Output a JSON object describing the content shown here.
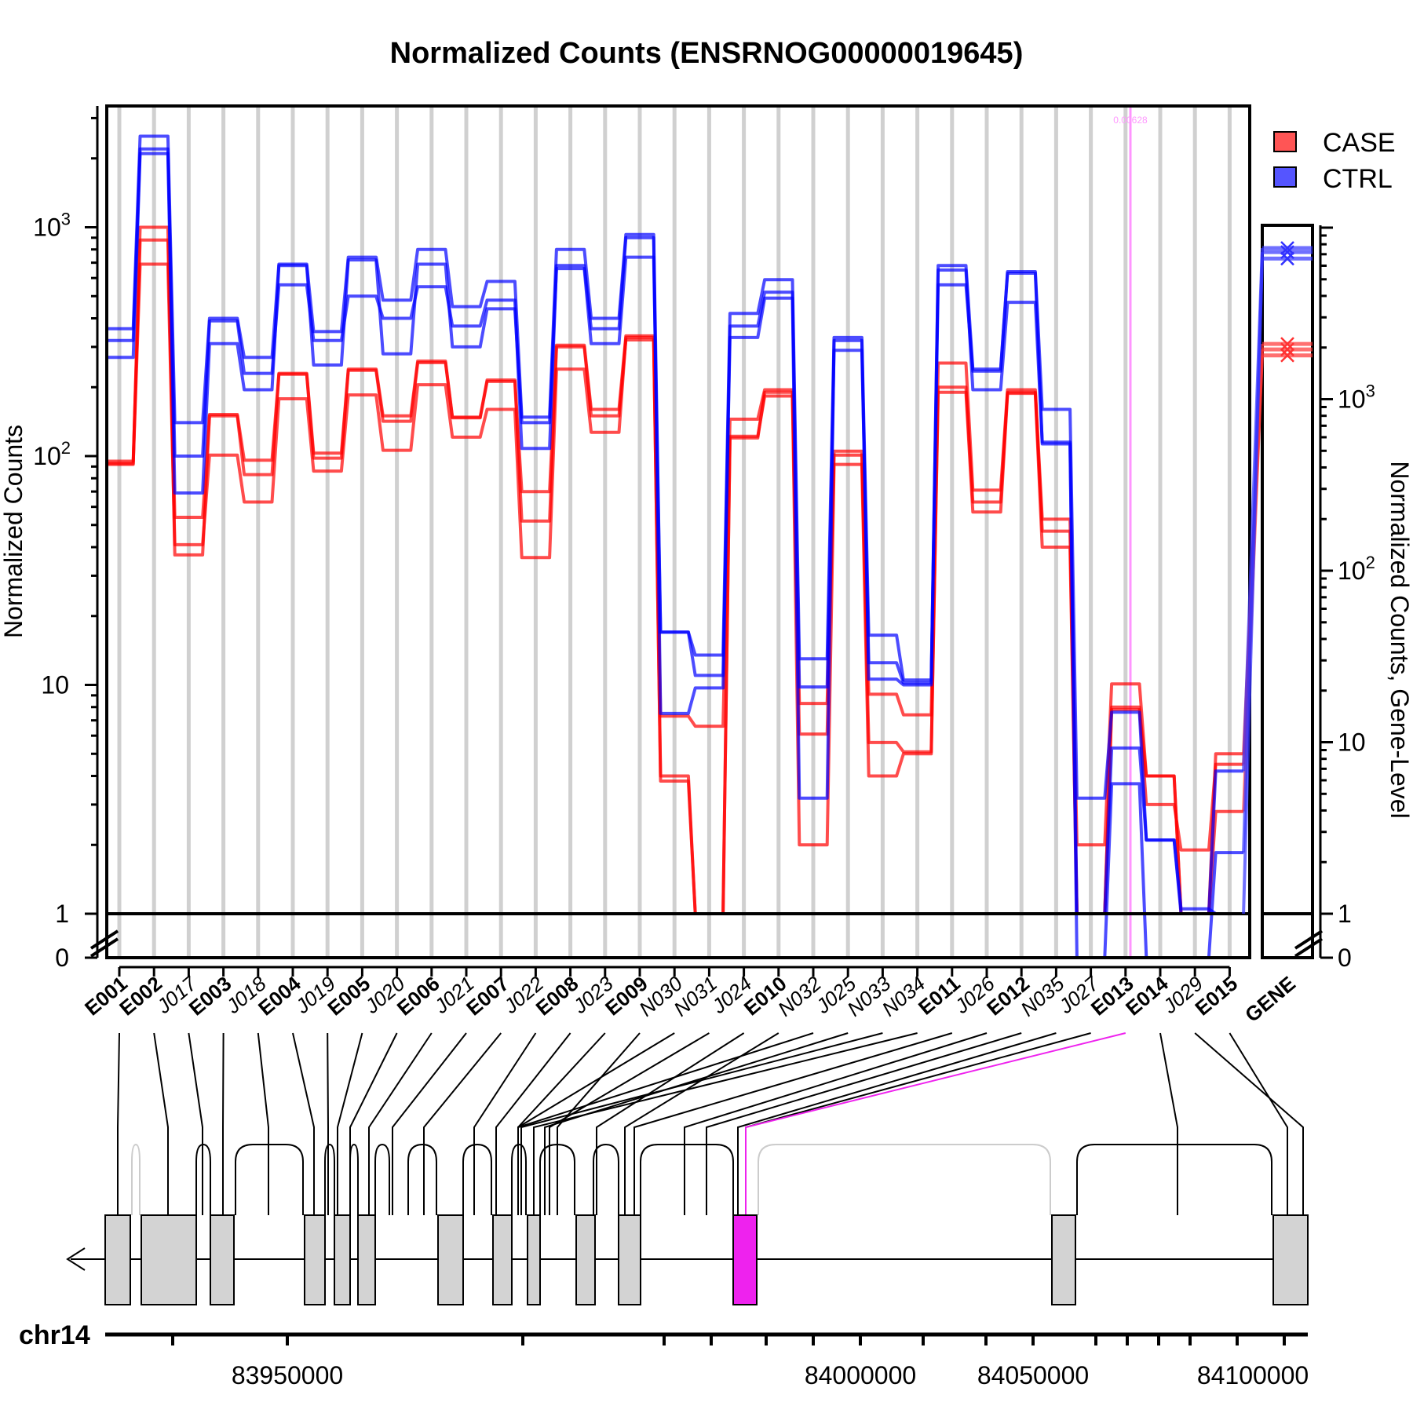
{
  "chart_data": {
    "type": "line",
    "title": "Normalized Counts (ENSRNOG00000019645)",
    "ylabel": "Normalized Counts",
    "ylabel_right": "Normalized Counts, Gene-Level",
    "y_scale": "log",
    "y_tick_labels": {
      "t0": "0",
      "t1": "1",
      "t10": "10",
      "t100_base": "10",
      "t100_exp": "2",
      "t1000_base": "10",
      "t1000_exp": "3"
    },
    "right_tick_labels": {
      "t0": "0",
      "t1": "1",
      "t10": "10",
      "t100_base": "10",
      "t100_exp": "2",
      "t1000_base": "10",
      "t1000_exp": "3"
    },
    "legend": {
      "position": "top-right",
      "entries": [
        {
          "name": "CASE",
          "color": "#ff3333"
        },
        {
          "name": "CTRL",
          "color": "#3333ff"
        }
      ]
    },
    "highlight": {
      "feature": "E013",
      "label": "0.00628",
      "color": "#ff66ff"
    },
    "categories": [
      "E001",
      "E002",
      "J017",
      "E003",
      "J018",
      "E004",
      "J019",
      "E005",
      "J020",
      "E006",
      "J021",
      "E007",
      "J022",
      "E008",
      "J023",
      "E009",
      "N030",
      "N031",
      "J024",
      "E010",
      "N032",
      "J025",
      "N033",
      "N034",
      "E011",
      "J026",
      "E012",
      "N035",
      "J027",
      "E013",
      "E014",
      "J029",
      "E015"
    ],
    "exon_categories": [
      "E001",
      "E002",
      "E003",
      "E004",
      "E005",
      "E006",
      "E007",
      "E008",
      "E009",
      "E010",
      "E011",
      "E012",
      "E013",
      "E014",
      "E015"
    ],
    "series": [
      {
        "name": "CASE",
        "color": "#ff0000",
        "values": [
          92,
          1000,
          37,
          152,
          96,
          230,
          103,
          240,
          150,
          260,
          148,
          215,
          70,
          305,
          160,
          335,
          7.3,
          6.6,
          145,
          195,
          8.3,
          105,
          9.1,
          7.4,
          255,
          71,
          195,
          53,
          2.0,
          10.1,
          4.0,
          1.0,
          5.0
        ]
      },
      {
        "name": "CASE",
        "color": "#ff0000",
        "values": [
          95,
          880,
          54,
          150,
          83,
          228,
          98,
          237,
          142,
          256,
          147,
          212,
          52,
          300,
          150,
          322,
          4.0,
          1.0,
          122,
          183,
          6.1,
          101,
          5.6,
          5.1,
          200,
          63,
          190,
          47,
          1.0,
          7.8,
          4.0,
          1.0,
          2.8
        ]
      },
      {
        "name": "CASE",
        "color": "#ff0000",
        "values": [
          93,
          690,
          41,
          101,
          63,
          178,
          86,
          185,
          106,
          205,
          121,
          160,
          36,
          240,
          127,
          330,
          3.8,
          1.0,
          120,
          190,
          2.0,
          92,
          4.0,
          5.0,
          190,
          57,
          188,
          40,
          1.0,
          8.0,
          3.0,
          1.9,
          4.5
        ]
      },
      {
        "name": "CTRL",
        "color": "#0000ff",
        "values": [
          360,
          2500,
          140,
          400,
          270,
          690,
          350,
          740,
          480,
          800,
          450,
          580,
          148,
          800,
          400,
          930,
          17,
          13.5,
          420,
          590,
          13,
          330,
          16.5,
          10.5,
          680,
          240,
          640,
          160,
          3.2,
          7.6,
          2.1,
          1.0,
          4.2
        ]
      },
      {
        "name": "CTRL",
        "color": "#0000ff",
        "values": [
          320,
          2200,
          100,
          390,
          230,
          560,
          320,
          500,
          400,
          550,
          370,
          480,
          108,
          680,
          360,
          900,
          7.5,
          9.7,
          370,
          520,
          9.8,
          290,
          12.5,
          10.2,
          650,
          195,
          470,
          115,
          1.0,
          5.3,
          2.1,
          1.05,
          1.0
        ]
      },
      {
        "name": "CTRL",
        "color": "#0000ff",
        "values": [
          270,
          2100,
          69,
          310,
          195,
          680,
          250,
          720,
          280,
          690,
          300,
          440,
          140,
          660,
          310,
          740,
          17,
          11,
          330,
          490,
          3.2,
          320,
          10.6,
          10,
          560,
          235,
          630,
          113,
          0,
          3.7,
          0,
          0,
          1.85
        ]
      }
    ],
    "gene_level": {
      "label": "GENE",
      "case": [
        2100,
        1950,
        1800
      ],
      "ctrl": [
        7600,
        7200,
        6600
      ]
    },
    "genome_axis": {
      "chromosome": "chr14",
      "tick_labels": [
        "83950000",
        "84000000",
        "84050000",
        "84100000"
      ]
    }
  }
}
